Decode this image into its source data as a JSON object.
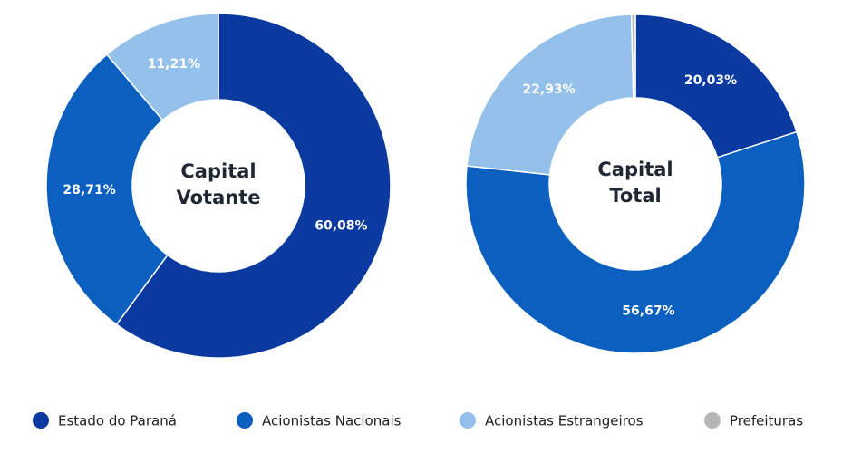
{
  "chart_data": {
    "type": "pie",
    "categories": [
      "Estado do Paraná",
      "Acionistas Nacionais",
      "Acionistas Estrangeiros",
      "Prefeituras"
    ],
    "colors": [
      "#0a3a9f",
      "#0a5fbf",
      "#93c1ea",
      "#b7b7b7"
    ],
    "pies": [
      {
        "title": "Capital Votante",
        "values": [
          60.08,
          28.71,
          11.21,
          null
        ],
        "value_labels": [
          "60,08%",
          "28,71%",
          "11,21%",
          null
        ]
      },
      {
        "title": "Capital Total",
        "values": [
          20.03,
          56.67,
          22.93,
          0.37
        ],
        "value_labels": [
          "20,03%",
          "56,67%",
          "22,93%",
          null
        ]
      }
    ]
  }
}
